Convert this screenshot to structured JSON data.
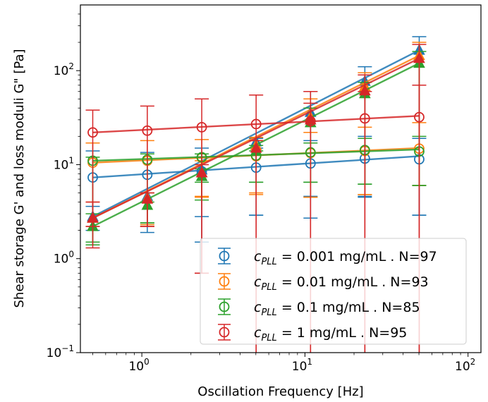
{
  "chart_data": {
    "type": "line",
    "xlabel": "Oscillation Frequency [Hz]",
    "ylabel": "Shear storage G' and loss moduli G\" [Pa]",
    "xscale": "log",
    "yscale": "log",
    "xlim": [
      0.42,
      120
    ],
    "ylim": [
      0.1,
      500
    ],
    "x_ticks": [
      {
        "value": 1,
        "base": "10",
        "exp": "0"
      },
      {
        "value": 10,
        "base": "10",
        "exp": "1"
      },
      {
        "value": 100,
        "base": "10",
        "exp": "2"
      }
    ],
    "y_ticks": [
      {
        "value": 0.1,
        "base": "10",
        "exp": "−1"
      },
      {
        "value": 1,
        "base": "10",
        "exp": "0"
      },
      {
        "value": 10,
        "base": "10",
        "exp": "1"
      },
      {
        "value": 100,
        "base": "10",
        "exp": "2"
      }
    ],
    "x": [
      0.5,
      1.08,
      2.33,
      5.02,
      10.82,
      23.3,
      50.2
    ],
    "legend_position": "lower right",
    "series": [
      {
        "name": "c_PLL = 0.001 mg/mL . N=97",
        "legend_prefix": "c",
        "legend_sub": "PLL",
        "legend_suffix": " = 0.001 mg/mL . N=97",
        "color": "#1f77b4",
        "loss_modulus": [
          7.3,
          7.8,
          8.5,
          9.3,
          10.3,
          11.6,
          11.4
        ],
        "loss_err_low": [
          2.0,
          1.9,
          1.5,
          2.9,
          2.7,
          4.5,
          2.9
        ],
        "loss_err_high": [
          14.0,
          13.5,
          15.0,
          15.0,
          18.0,
          20.0,
          19.0
        ],
        "loss_fit": [
          7.3,
          12.3
        ],
        "storage_modulus": [
          2.8,
          4.6,
          8.8,
          17.5,
          36.0,
          77.0,
          165.0
        ],
        "storage_err_low": [
          2.2,
          2.2,
          2.8,
          2.9,
          4.6,
          4.6,
          2.9
        ],
        "storage_err_high": [
          3.6,
          5.0,
          12.0,
          19.0,
          60.0,
          110.0,
          230.0
        ],
        "storage_fit": [
          2.8,
          165.0
        ]
      },
      {
        "name": "c_PLL = 0.01 mg/mL . N=93",
        "legend_prefix": "c",
        "legend_sub": "PLL",
        "legend_suffix": " = 0.01 mg/mL . N=93",
        "color": "#ff7f0e",
        "loss_modulus": [
          10.5,
          11.0,
          11.8,
          12.3,
          13.3,
          14.0,
          14.8
        ],
        "loss_err_low": [
          2.2,
          2.3,
          4.6,
          4.8,
          4.5,
          4.8,
          6.0
        ],
        "loss_err_high": [
          17.0,
          18.0,
          18.5,
          19.5,
          22.0,
          25.0,
          28.0
        ],
        "loss_fit": [
          10.5,
          15.0
        ],
        "storage_modulus": [
          2.7,
          4.4,
          8.2,
          16.0,
          32.0,
          68.0,
          145.0
        ],
        "storage_err_low": [
          1.4,
          2.2,
          4.5,
          5.0,
          4.5,
          4.8,
          6.0
        ],
        "storage_err_high": [
          4.0,
          5.0,
          11.0,
          18.0,
          50.0,
          95.0,
          200.0
        ],
        "storage_fit": [
          2.7,
          145.0
        ]
      },
      {
        "name": "c_PLL = 0.1 mg/mL . N=85",
        "legend_prefix": "c",
        "legend_sub": "PLL",
        "legend_suffix": " = 0.1 mg/mL . N=85",
        "color": "#2ca02c",
        "loss_modulus": [
          11.0,
          11.3,
          12.0,
          12.5,
          13.5,
          14.3,
          13.8
        ],
        "loss_err_low": [
          1.5,
          2.4,
          6.5,
          6.5,
          6.5,
          6.2,
          6.0
        ],
        "loss_err_high": [
          12.0,
          13.0,
          13.0,
          14.0,
          17.0,
          19.0,
          20.0
        ],
        "loss_fit": [
          11.0,
          14.5
        ],
        "storage_modulus": [
          2.2,
          3.7,
          7.5,
          14.0,
          28.0,
          57.0,
          120.0
        ],
        "storage_err_low": [
          1.4,
          2.4,
          4.2,
          6.5,
          6.5,
          6.2,
          6.0
        ],
        "storage_err_high": [
          3.0,
          4.0,
          9.0,
          16.0,
          40.0,
          75.0,
          160.0
        ],
        "storage_fit": [
          2.2,
          120.0
        ]
      },
      {
        "name": "c_PLL = 1 mg/mL . N=95",
        "legend_prefix": "c",
        "legend_sub": "PLL",
        "legend_suffix": " = 1 mg/mL . N=95",
        "color": "#d62728",
        "loss_modulus": [
          22.0,
          23.0,
          25.0,
          27.0,
          29.0,
          31.0,
          32.0
        ],
        "loss_err_low": [
          2.2,
          2.2,
          0.7,
          0.08,
          0.08,
          0.08,
          0.08
        ],
        "loss_err_high": [
          38.0,
          42.0,
          50.0,
          55.0,
          60.0,
          60.0,
          70.0
        ],
        "loss_fit": [
          22.0,
          33.0
        ],
        "storage_modulus": [
          2.7,
          4.3,
          8.2,
          15.0,
          30.0,
          61.0,
          135.0
        ],
        "storage_err_low": [
          1.3,
          2.2,
          0.7,
          0.08,
          0.08,
          0.08,
          0.08
        ],
        "storage_err_high": [
          4.0,
          5.0,
          10.0,
          18.0,
          45.0,
          90.0,
          190.0
        ],
        "storage_fit": [
          2.7,
          135.0
        ]
      }
    ]
  }
}
